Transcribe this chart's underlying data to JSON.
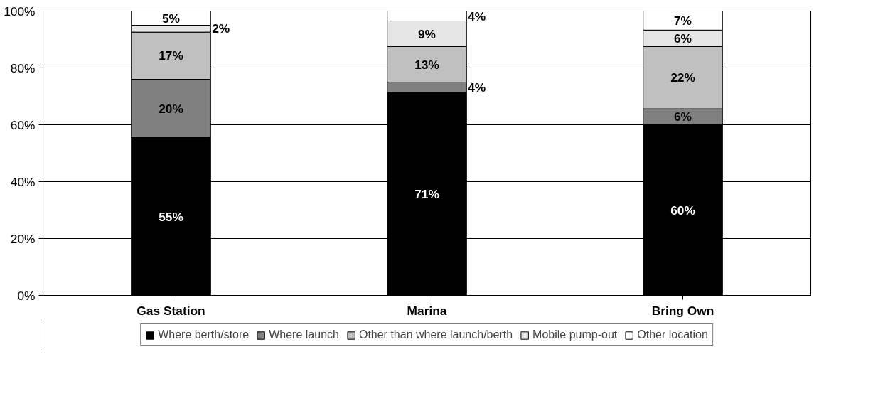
{
  "chart_data": {
    "type": "bar",
    "stacked": true,
    "categories": [
      "Gas Station",
      "Marina",
      "Bring Own"
    ],
    "series": [
      {
        "name": "Where berth/store",
        "color": "#000000",
        "values": [
          55.5,
          71.5,
          60
        ],
        "value_labels": [
          "55%",
          "71%",
          "60%"
        ]
      },
      {
        "name": "Where launch",
        "color": "#808080",
        "values": [
          20.5,
          3.5,
          5.6
        ],
        "value_labels": [
          "20%",
          "4%",
          "6%"
        ]
      },
      {
        "name": "Other than where launch/berth",
        "color": "#c0c0c0",
        "values": [
          16.6,
          12.5,
          21.9
        ],
        "value_labels": [
          "17%",
          "13%",
          "22%"
        ]
      },
      {
        "name": "Mobile pump-out",
        "color": "#e6e6e6",
        "values": [
          2.4,
          9,
          5.8
        ],
        "value_labels": [
          "2%",
          "9%",
          "6%"
        ]
      },
      {
        "name": "Other location",
        "color": "#ffffff",
        "values": [
          5,
          3.5,
          6.7
        ],
        "value_labels": [
          "5%",
          "4%",
          "7%"
        ]
      }
    ],
    "ylim": [
      0,
      100
    ],
    "yticks": [
      {
        "value": 0,
        "label": "0%"
      },
      {
        "value": 20,
        "label": "20%"
      },
      {
        "value": 40,
        "label": "40%"
      },
      {
        "value": 60,
        "label": "60%"
      },
      {
        "value": 80,
        "label": "80%"
      },
      {
        "value": 100,
        "label": "100%"
      }
    ],
    "grid": "y",
    "legend": "bottom"
  }
}
